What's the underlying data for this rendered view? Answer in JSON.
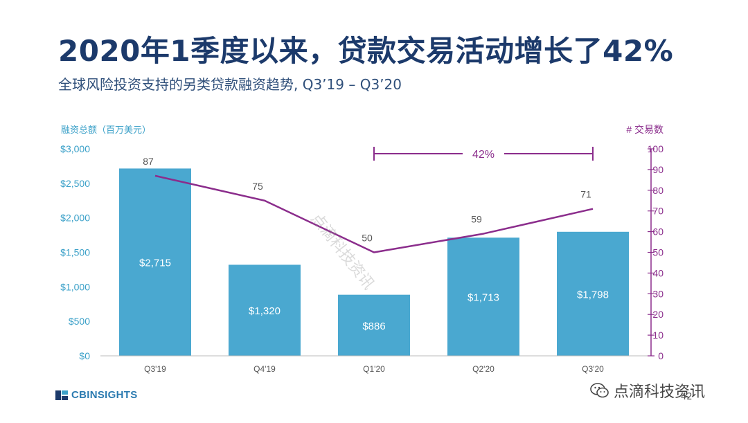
{
  "title": "2020年1季度以来，贷款交易活动增长了42%",
  "subtitle": "全球风险投资支持的另类贷款融资趋势, Q3’19 – Q3’20",
  "logo_text": "CBINSIGHTS",
  "page_number": "42",
  "watermark_text": "点滴科技资讯",
  "wechat_label": "点滴科技资讯",
  "colors": {
    "bar": "#4aa8d0",
    "line": "#8b2d8c",
    "left_axis": "#3aa0c8",
    "title": "#1c3a6b"
  },
  "chart_data": {
    "type": "bar",
    "categories": [
      "Q3'19",
      "Q4'19",
      "Q1'20",
      "Q2'20",
      "Q3'20"
    ],
    "series": [
      {
        "values": [
          2715,
          1320,
          886,
          1713,
          1798
        ],
        "labels": [
          "$2,715",
          "$1,320",
          "$886",
          "$1,713",
          "$1,798"
        ],
        "axis": "left",
        "mark": "bar"
      },
      {
        "values": [
          87,
          75,
          50,
          59,
          71
        ],
        "labels": [
          "87",
          "75",
          "50",
          "59",
          "71"
        ],
        "axis": "right",
        "mark": "line"
      }
    ],
    "ylabel_left": "融资总额（百万美元）",
    "ylabel_right": "# 交易数",
    "ylim_left": [
      0,
      3000
    ],
    "ylim_right": [
      0,
      100
    ],
    "yticks_left": [
      "$0",
      "$500",
      "$1,000",
      "$1,500",
      "$2,000",
      "$2,500",
      "$3,000"
    ],
    "yticks_right": [
      "0",
      "10",
      "20",
      "30",
      "40",
      "50",
      "60",
      "70",
      "80",
      "90",
      "100"
    ],
    "annotation": {
      "text": "42%",
      "from": "Q1'20",
      "to": "Q3'20"
    }
  }
}
